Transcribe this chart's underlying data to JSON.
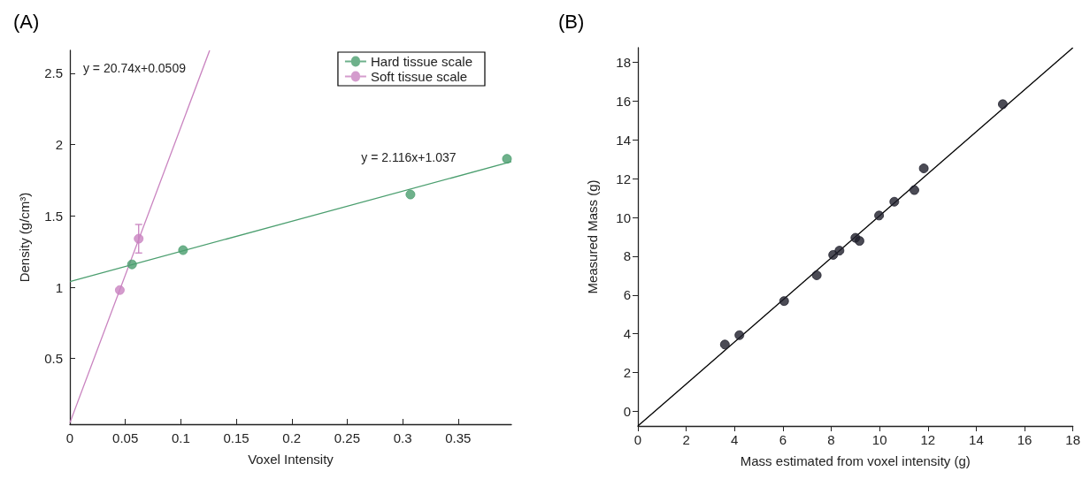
{
  "chart_data": [
    {
      "type": "scatter",
      "title": "(A)",
      "xlabel": "Voxel Intensity",
      "ylabel": "Density (g/cm³)",
      "legend": "top right",
      "marker": "circle",
      "xlim": [
        0,
        0.398
      ],
      "ylim": [
        0.04,
        2.66
      ],
      "xticks": [
        0,
        0.05,
        0.1,
        0.15,
        0.2,
        0.25,
        0.3,
        0.35
      ],
      "yticks": [
        0.5,
        1,
        1.5,
        2,
        2.5
      ],
      "series": [
        {
          "name": "Hard tissue scale",
          "color": "#4a9e6e",
          "x": [
            0.056,
            0.102,
            0.307,
            0.394
          ],
          "values": [
            1.16,
            1.26,
            1.65,
            1.9
          ]
        },
        {
          "name": "Soft tissue scale",
          "color": "#c983c0",
          "x": [
            0.045,
            0.062
          ],
          "values": [
            0.98,
            1.34
          ],
          "errors": [
            null,
            0.1
          ]
        },
        {
          "type": "line",
          "marker": "none",
          "color": "#4a9e6e",
          "x": [
            0,
            0.398
          ],
          "values": [
            1.04,
            1.88
          ]
        },
        {
          "type": "line",
          "marker": "none",
          "color": "#c983c0",
          "x": [
            0,
            0.126
          ],
          "values": [
            0.05,
            2.66
          ]
        }
      ],
      "annotations": [
        "y = 20.74x+0.0509",
        "y = 2.116x+1.037"
      ]
    },
    {
      "type": "scatter",
      "title": "(B)",
      "xlabel": "Mass estimated from voxel intensity (g)",
      "ylabel": "Measured Mass (g)",
      "marker": "circle",
      "xlim": [
        0,
        18
      ],
      "ylim": [
        -0.75,
        18.75
      ],
      "xticks": [
        0,
        2,
        4,
        6,
        8,
        10,
        12,
        14,
        16,
        18
      ],
      "yticks": [
        0,
        2,
        4,
        6,
        8,
        10,
        12,
        14,
        16,
        18
      ],
      "series": [
        {
          "color": "#1e1e2a",
          "x": [
            3.6,
            4.2,
            6.05,
            7.4,
            8.08,
            8.34,
            9.0,
            9.17,
            9.98,
            10.61,
            11.44,
            11.83,
            15.1
          ],
          "values": [
            3.45,
            3.93,
            5.69,
            7.02,
            8.07,
            8.29,
            8.95,
            8.79,
            10.1,
            10.81,
            11.41,
            12.53,
            15.84
          ]
        },
        {
          "type": "line",
          "marker": "none",
          "color": "#000000",
          "x": [
            0,
            18
          ],
          "values": [
            -0.75,
            18.75
          ]
        }
      ]
    }
  ]
}
